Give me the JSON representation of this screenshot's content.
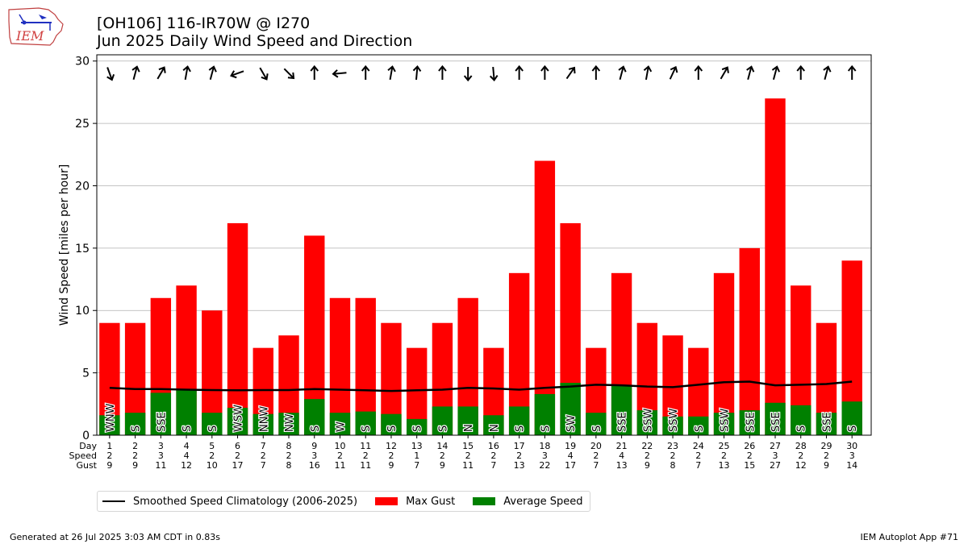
{
  "header": {
    "title": "[OH106] 116-IR70W @ I270",
    "subtitle": "Jun 2025 Daily Wind Speed and Direction"
  },
  "logo": {
    "text": "IEM",
    "color": "#d04040"
  },
  "footer": {
    "generated": "Generated at 26 Jul 2025 3:03 AM CDT in 0.83s",
    "app": "IEM Autoplot App #71"
  },
  "legend": {
    "items": [
      {
        "label": "Smoothed Speed Climatology (2006-2025)",
        "kind": "line",
        "color": "#000000"
      },
      {
        "label": "Max Gust",
        "kind": "box",
        "color": "#ff0000"
      },
      {
        "label": "Average Speed",
        "kind": "box",
        "color": "#008000"
      }
    ]
  },
  "chart_data": {
    "type": "bar",
    "ylabel": "Wind Speed [miles per hour]",
    "ylim": [
      0,
      30.5
    ],
    "yticks": [
      0,
      5,
      10,
      15,
      20,
      25,
      30
    ],
    "grid": "horizontal",
    "row_labels": [
      "Day",
      "Speed",
      "Gust"
    ],
    "days": [
      1,
      2,
      3,
      4,
      5,
      6,
      7,
      8,
      9,
      10,
      11,
      12,
      13,
      14,
      15,
      16,
      17,
      18,
      19,
      20,
      21,
      22,
      23,
      24,
      25,
      26,
      27,
      28,
      29,
      30
    ],
    "speed_labels": [
      2,
      2,
      3,
      4,
      2,
      2,
      2,
      2,
      3,
      2,
      2,
      2,
      1,
      2,
      2,
      2,
      2,
      3,
      4,
      2,
      4,
      2,
      2,
      2,
      2,
      2,
      3,
      2,
      2,
      3
    ],
    "series": [
      {
        "name": "Max Gust",
        "color": "#ff0000",
        "values": [
          9,
          9,
          11,
          12,
          10,
          17,
          7,
          8,
          16,
          11,
          11,
          9,
          7,
          9,
          11,
          7,
          13,
          22,
          17,
          7,
          13,
          9,
          8,
          7,
          13,
          15,
          27,
          12,
          9,
          14
        ]
      },
      {
        "name": "Average Speed",
        "color": "#008000",
        "values": [
          1.6,
          1.8,
          3.4,
          3.7,
          1.8,
          2.2,
          1.7,
          1.8,
          2.9,
          1.8,
          1.9,
          1.7,
          1.3,
          2.3,
          2.3,
          1.6,
          2.3,
          3.3,
          4.2,
          1.8,
          4.0,
          2.0,
          1.5,
          1.5,
          1.8,
          2.0,
          2.6,
          2.4,
          1.8,
          2.7
        ]
      },
      {
        "name": "Smoothed Speed Climatology (2006-2025)",
        "color": "#000000",
        "values": [
          3.8,
          3.7,
          3.7,
          3.65,
          3.62,
          3.6,
          3.62,
          3.62,
          3.7,
          3.65,
          3.6,
          3.55,
          3.6,
          3.65,
          3.8,
          3.75,
          3.65,
          3.8,
          3.9,
          4.05,
          4.0,
          3.9,
          3.85,
          4.05,
          4.25,
          4.3,
          4.0,
          4.05,
          4.1,
          4.3
        ]
      }
    ],
    "direction_labels": [
      "WNW",
      "S",
      "SSE",
      "S",
      "S",
      "WSW",
      "NNW",
      "NW",
      "S",
      "W",
      "S",
      "S",
      "S",
      "S",
      "N",
      "N",
      "S",
      "S",
      "SW",
      "S",
      "SSE",
      "SSW",
      "SSW",
      "S",
      "SSW",
      "SSE",
      "SSE",
      "S",
      "SSE",
      "S"
    ],
    "arrow_angles_deg": [
      160,
      15,
      30,
      10,
      15,
      250,
      150,
      135,
      0,
      265,
      0,
      10,
      5,
      0,
      180,
      175,
      0,
      0,
      35,
      0,
      15,
      10,
      25,
      0,
      30,
      15,
      15,
      0,
      15,
      0
    ]
  }
}
